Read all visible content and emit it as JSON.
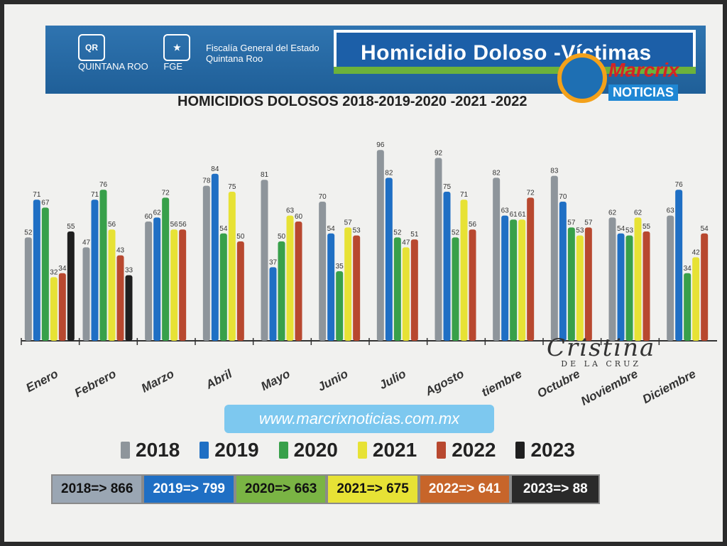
{
  "header": {
    "state_label": "QUINTANA ROO",
    "agency_label": "FGE",
    "agency_name": "Fiscalía General del Estado",
    "agency_state": "Quintana Roo",
    "title": "Homicidio Doloso -Víctimas"
  },
  "brand": {
    "top": "Marcrix",
    "bottom": "NOTICIAS"
  },
  "signature": {
    "name": "Cristina",
    "subtitle": "DE LA CRUZ"
  },
  "website": "www.marcrixnoticias.com.mx",
  "chart_data": {
    "type": "bar",
    "title": "HOMICIDIOS DOLOSOS 2018-2019-2020 -2021 -2022",
    "categories": [
      "Enero",
      "Febrero",
      "Marzo",
      "Abril",
      "Mayo",
      "Junio",
      "Julio",
      "Agosto",
      "Septiembre",
      "Octubre",
      "Noviembre",
      "Diciembre"
    ],
    "category_labels_visible": [
      "Enero",
      "Febrero",
      "Marzo",
      "Abril",
      "Mayo",
      "Junio",
      "Julio",
      "Agosto",
      "tiembre",
      "Octubre",
      "Noviembre",
      "Diciembre"
    ],
    "series": [
      {
        "name": "2018",
        "color": "#8e959b",
        "values": [
          52,
          47,
          60,
          78,
          81,
          70,
          96,
          92,
          82,
          83,
          62,
          63
        ]
      },
      {
        "name": "2019",
        "color": "#1f6fc4",
        "values": [
          71,
          71,
          62,
          84,
          37,
          54,
          82,
          75,
          63,
          70,
          54,
          76
        ]
      },
      {
        "name": "2020",
        "color": "#38a04a",
        "values": [
          67,
          76,
          72,
          54,
          50,
          35,
          52,
          52,
          61,
          57,
          53,
          34
        ]
      },
      {
        "name": "2021",
        "color": "#e7e235",
        "values": [
          32,
          56,
          56,
          75,
          63,
          57,
          47,
          71,
          61,
          53,
          62,
          42
        ]
      },
      {
        "name": "2022",
        "color": "#b8482f",
        "values": [
          34,
          43,
          56,
          50,
          60,
          53,
          51,
          56,
          72,
          57,
          55,
          54
        ]
      },
      {
        "name": "2023",
        "color": "#1f1f1f",
        "values": [
          55,
          33,
          null,
          null,
          null,
          null,
          null,
          null,
          null,
          null,
          null,
          null
        ]
      }
    ],
    "ylim": [
      0,
      100
    ],
    "legend_position": "bottom",
    "totals": [
      {
        "label": "2018=> 866",
        "color": "#9aa6b3",
        "text_color": "#111"
      },
      {
        "label": "2019=> 799",
        "color": "#1f6fc4",
        "text_color": "#fff"
      },
      {
        "label": "2020=> 663",
        "color": "#7ab444",
        "text_color": "#111"
      },
      {
        "label": "2021=> 675",
        "color": "#e7e235",
        "text_color": "#111"
      },
      {
        "label": "2022=> 641",
        "color": "#c7652a",
        "text_color": "#fff"
      },
      {
        "label": "2023=> 88",
        "color": "#2a2a2a",
        "text_color": "#fff"
      }
    ]
  }
}
